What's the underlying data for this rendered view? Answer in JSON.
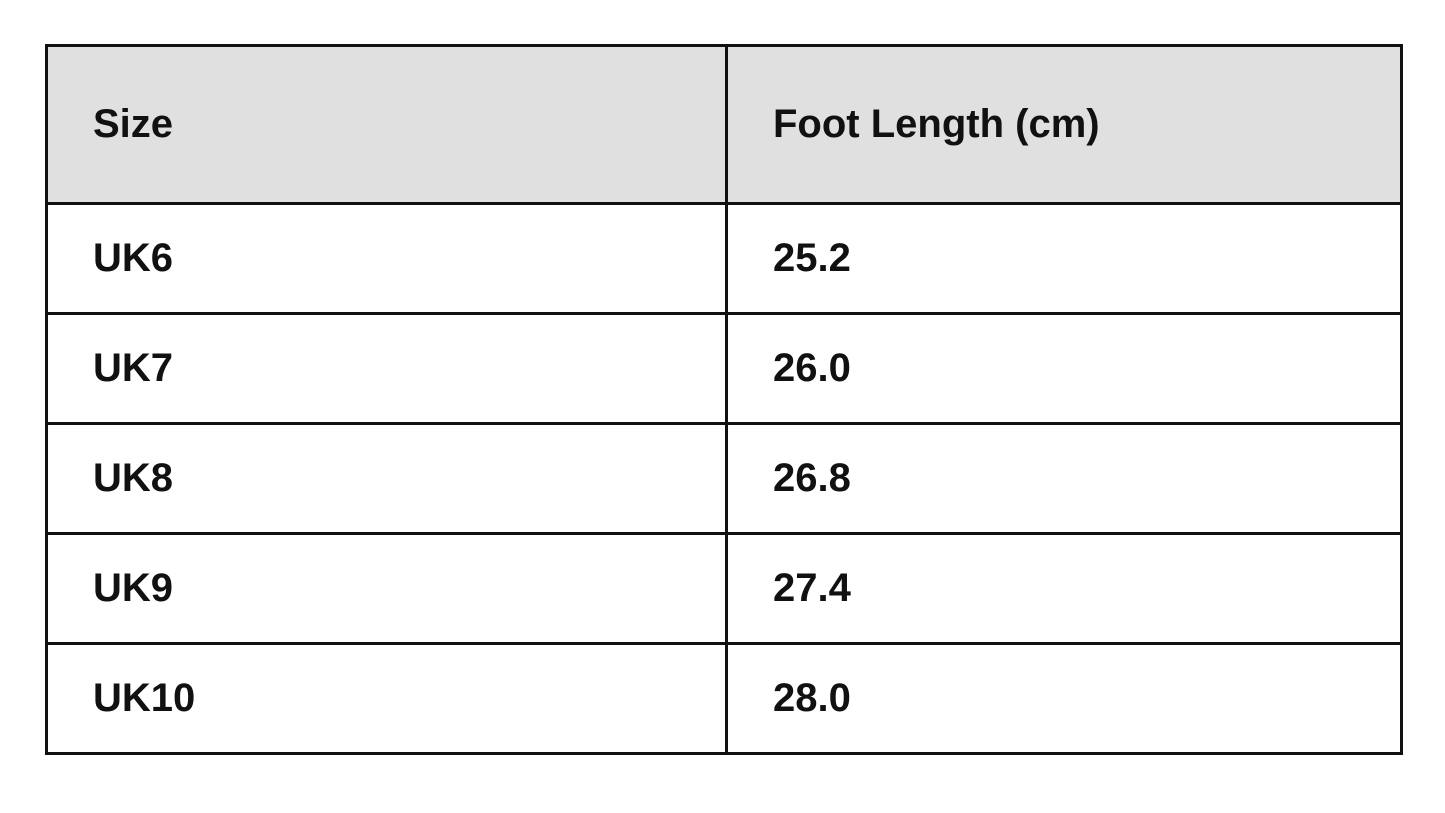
{
  "table": {
    "headers": [
      "Size",
      "Foot Length (cm)"
    ],
    "rows": [
      [
        "UK6",
        "25.2"
      ],
      [
        "UK7",
        "26.0"
      ],
      [
        "UK8",
        "26.8"
      ],
      [
        "UK9",
        "27.4"
      ],
      [
        "UK10",
        "28.0"
      ]
    ]
  }
}
